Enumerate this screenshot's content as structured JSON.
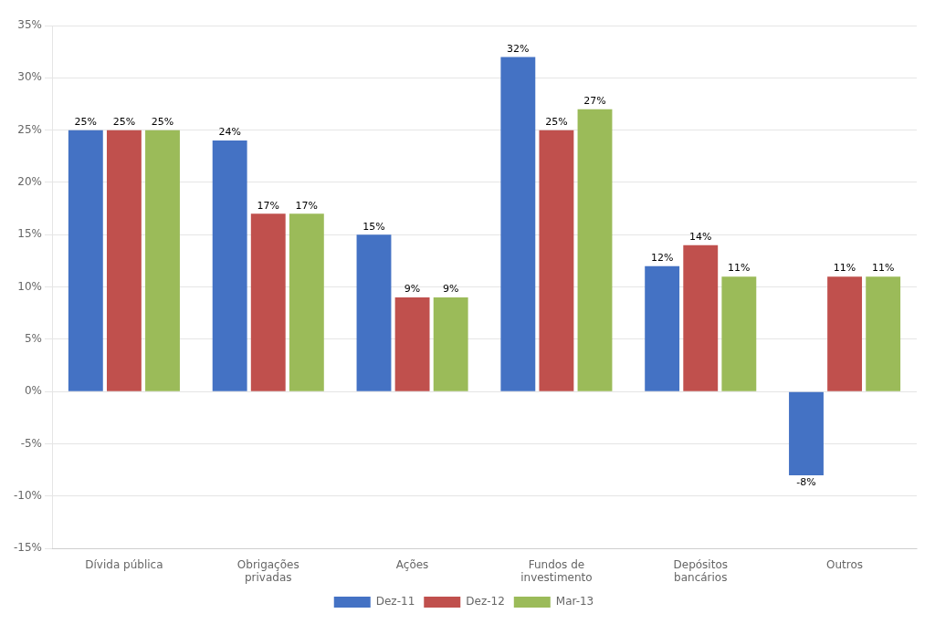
{
  "chart_data": {
    "type": "bar",
    "categories": [
      "Dívida pública",
      "Obrigações\nprivadas",
      "Ações",
      "Fundos de\ninvestimento",
      "Depósitos\nbancários",
      "Outros"
    ],
    "series": [
      {
        "name": "Dez-11",
        "color": "#4472C4",
        "values": [
          25,
          24,
          15,
          32,
          12,
          -8
        ],
        "value_labels": [
          "25%",
          "24%",
          "15%",
          "32%",
          "12%",
          "-8%"
        ]
      },
      {
        "name": "Dez-12",
        "color": "#C0504D",
        "values": [
          25,
          17,
          9,
          25,
          14,
          11
        ],
        "value_labels": [
          "25%",
          "17%",
          "9%",
          "25%",
          "14%",
          "11%"
        ]
      },
      {
        "name": "Mar-13",
        "color": "#9BBB59",
        "values": [
          25,
          17,
          9,
          27,
          11,
          11
        ],
        "value_labels": [
          "25%",
          "17%",
          "9%",
          "27%",
          "11%",
          "11%"
        ]
      }
    ],
    "ylim": [
      -15,
      35
    ],
    "yticks": [
      {
        "value": -15,
        "label": "-15%"
      },
      {
        "value": -10,
        "label": "-10%"
      },
      {
        "value": -5,
        "label": "-5%"
      },
      {
        "value": 0,
        "label": "0%"
      },
      {
        "value": 5,
        "label": "5%"
      },
      {
        "value": 10,
        "label": "10%"
      },
      {
        "value": 15,
        "label": "15%"
      },
      {
        "value": 20,
        "label": "20%"
      },
      {
        "value": 25,
        "label": "25%"
      },
      {
        "value": 30,
        "label": "30%"
      },
      {
        "value": 35,
        "label": "35%"
      }
    ],
    "grid": true,
    "legend": "bottom",
    "data_labels": true
  }
}
